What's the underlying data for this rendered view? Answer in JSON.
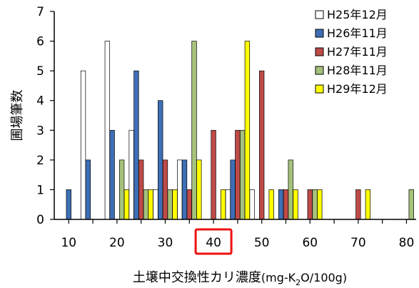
{
  "chart_data": {
    "type": "bar",
    "xlabel": "土壌中交換性カリ濃度(mg-K2O/100g)",
    "xlabel_main": "土壌中交換性カリ濃度",
    "xlabel_open": "(mg-K",
    "xlabel_sub": "2",
    "xlabel_close": "O/100g)",
    "ylabel": "圃場筆数",
    "xlim": [
      7,
      82
    ],
    "ylim": [
      0,
      7
    ],
    "x_ticks": [
      10,
      20,
      30,
      40,
      50,
      60,
      70,
      80
    ],
    "y_ticks": [
      0,
      1,
      2,
      3,
      4,
      5,
      6,
      7
    ],
    "highlighted_x_tick": 40,
    "highlight_color": "#ee1111",
    "legend_position": "top-right",
    "grid": false,
    "series": [
      {
        "name": "H25年12月",
        "color": "#ffffff",
        "points": [
          [
            13,
            5
          ],
          [
            18,
            6
          ],
          [
            23,
            3
          ],
          [
            28,
            1
          ],
          [
            33,
            2
          ],
          [
            43,
            1
          ],
          [
            48,
            1
          ]
        ]
      },
      {
        "name": "H26年11月",
        "color": "#3e6fb6",
        "points": [
          [
            10,
            1
          ],
          [
            14,
            2
          ],
          [
            19,
            3
          ],
          [
            24,
            5
          ],
          [
            29,
            4
          ],
          [
            34,
            2
          ],
          [
            44,
            2
          ],
          [
            54,
            1
          ]
        ]
      },
      {
        "name": "H27年11月",
        "color": "#be4b48",
        "points": [
          [
            25,
            2
          ],
          [
            30,
            2
          ],
          [
            35,
            1
          ],
          [
            40,
            3
          ],
          [
            45,
            3
          ],
          [
            50,
            5
          ],
          [
            55,
            1
          ],
          [
            60,
            1
          ],
          [
            70,
            1
          ]
        ]
      },
      {
        "name": "H28年11月",
        "color": "#a6c27c",
        "points": [
          [
            21,
            2
          ],
          [
            26,
            1
          ],
          [
            31,
            1
          ],
          [
            36,
            6
          ],
          [
            46,
            3
          ],
          [
            56,
            2
          ],
          [
            61,
            1
          ],
          [
            81,
            1
          ]
        ]
      },
      {
        "name": "H29年12月",
        "color": "#ffff00",
        "points": [
          [
            22,
            1
          ],
          [
            27,
            1
          ],
          [
            32,
            1
          ],
          [
            37,
            2
          ],
          [
            42,
            1
          ],
          [
            47,
            6
          ],
          [
            52,
            1
          ],
          [
            57,
            1
          ],
          [
            62,
            1
          ],
          [
            72,
            1
          ]
        ]
      }
    ]
  }
}
